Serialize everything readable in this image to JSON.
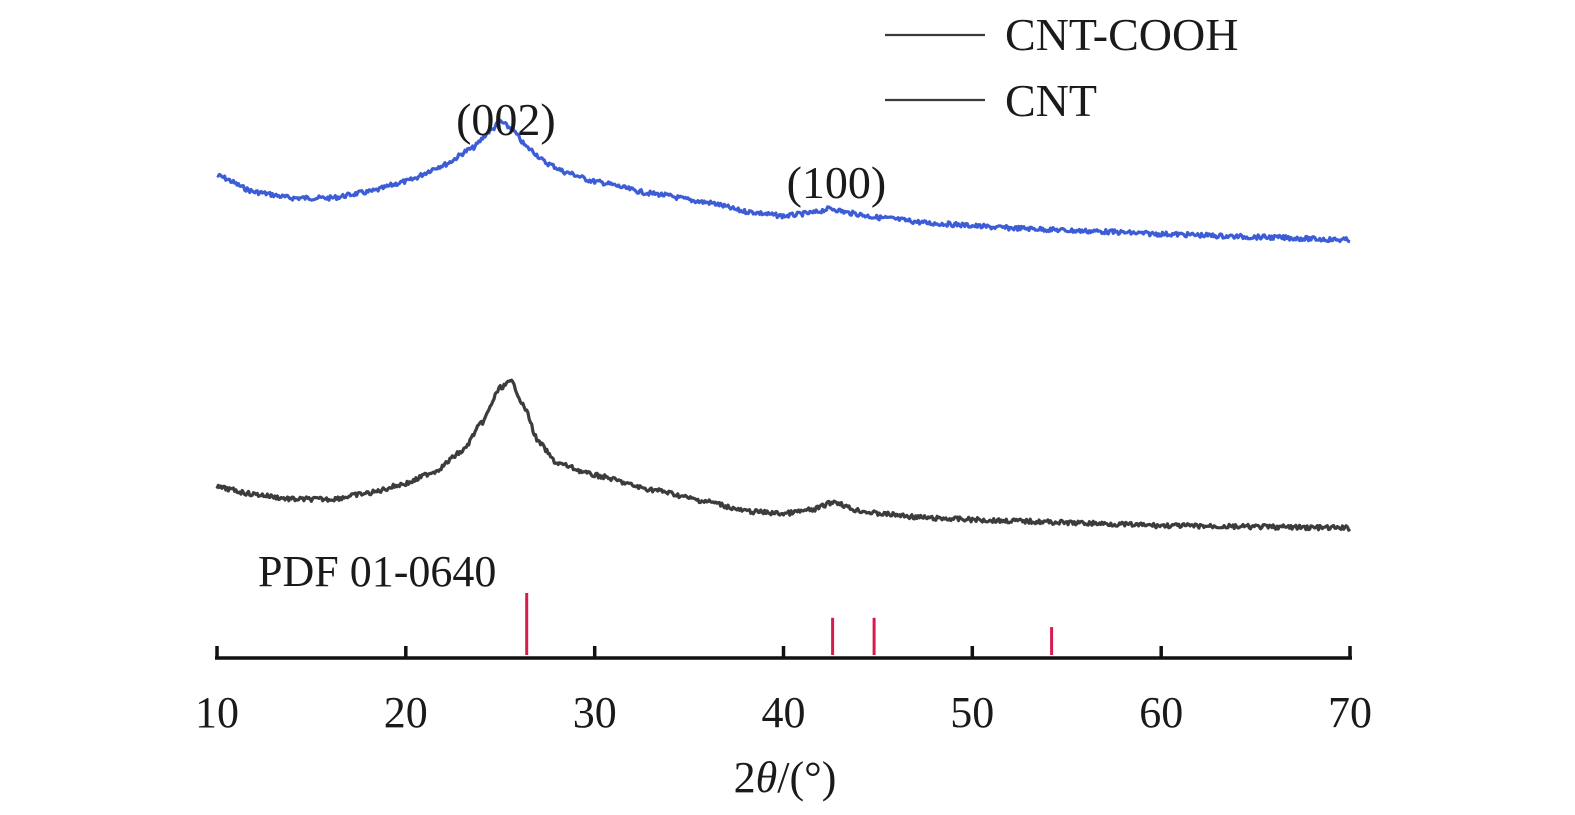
{
  "chart_data": {
    "type": "line",
    "xlabel": "2θ/(°)",
    "xlim": [
      10,
      70
    ],
    "x_ticks": [
      10,
      20,
      30,
      40,
      50,
      60,
      70
    ],
    "ylabel": "",
    "y_ticks_shown": false,
    "grid": false,
    "legend_position": "top-right",
    "series": [
      {
        "name": "CNT-COOH",
        "color": "#3d5dd6",
        "x": [
          10,
          12,
          14,
          16,
          18,
          20,
          22,
          23.5,
          24.5,
          25,
          25.5,
          26.5,
          27.5,
          28.5,
          30,
          33,
          36,
          38,
          40,
          41.5,
          42.5,
          43.5,
          45,
          48,
          52,
          56,
          60,
          65,
          70
        ],
        "y": [
          0.3,
          0.19,
          0.15,
          0.15,
          0.19,
          0.26,
          0.37,
          0.48,
          0.6,
          0.66,
          0.62,
          0.48,
          0.38,
          0.32,
          0.26,
          0.18,
          0.12,
          0.06,
          0.03,
          0.05,
          0.08,
          0.05,
          0.02,
          -0.02,
          -0.05,
          -0.07,
          -0.09,
          -0.11,
          -0.13
        ]
      },
      {
        "name": "CNT",
        "color": "#3c3c3c",
        "x": [
          10,
          12,
          14,
          16,
          18,
          20,
          21.5,
          23,
          24,
          25,
          25.6,
          26.3,
          27,
          28,
          30,
          33,
          36,
          38,
          40,
          41.5,
          42.7,
          43.8,
          45,
          48,
          52,
          56,
          60,
          65,
          70
        ],
        "y": [
          0.32,
          0.26,
          0.22,
          0.22,
          0.27,
          0.35,
          0.45,
          0.62,
          0.85,
          1.15,
          1.2,
          0.98,
          0.7,
          0.52,
          0.42,
          0.3,
          0.2,
          0.12,
          0.1,
          0.13,
          0.2,
          0.13,
          0.1,
          0.06,
          0.04,
          0.02,
          0.0,
          -0.01,
          -0.02
        ]
      }
    ],
    "peak_labels": [
      {
        "label": "(002)",
        "x": 25.3
      },
      {
        "label": "(100)",
        "x": 42.8
      }
    ],
    "reference": {
      "name": "PDF 01-0640",
      "color": "#d81b4f",
      "lines": [
        {
          "x": 26.4,
          "intensity": 1.0
        },
        {
          "x": 42.6,
          "intensity": 0.6
        },
        {
          "x": 44.8,
          "intensity": 0.6
        },
        {
          "x": 54.2,
          "intensity": 0.45
        }
      ]
    }
  }
}
